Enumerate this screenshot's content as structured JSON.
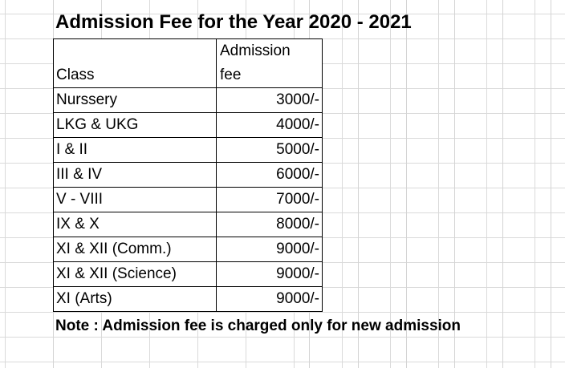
{
  "sheet": {
    "title": "Admission Fee for the Year 2020 - 2021",
    "headers": {
      "class": "Class",
      "fee_line1": "Admission",
      "fee_line2": "fee"
    },
    "rows": [
      {
        "class": "Nurssery",
        "fee": "3000/-"
      },
      {
        "class": "LKG & UKG",
        "fee": "4000/-"
      },
      {
        "class": "I & II",
        "fee": "5000/-"
      },
      {
        "class": "III & IV",
        "fee": "6000/-"
      },
      {
        "class": "V - VIII",
        "fee": "7000/-"
      },
      {
        "class": "IX & X",
        "fee": "8000/-"
      },
      {
        "class": "XI & XII (Comm.)",
        "fee": "9000/-"
      },
      {
        "class": "XI & XII (Science)",
        "fee": "9000/-"
      },
      {
        "class": "XI (Arts)",
        "fee": "9000/-"
      }
    ],
    "note": "Note : Admission fee is charged only for new admission"
  }
}
